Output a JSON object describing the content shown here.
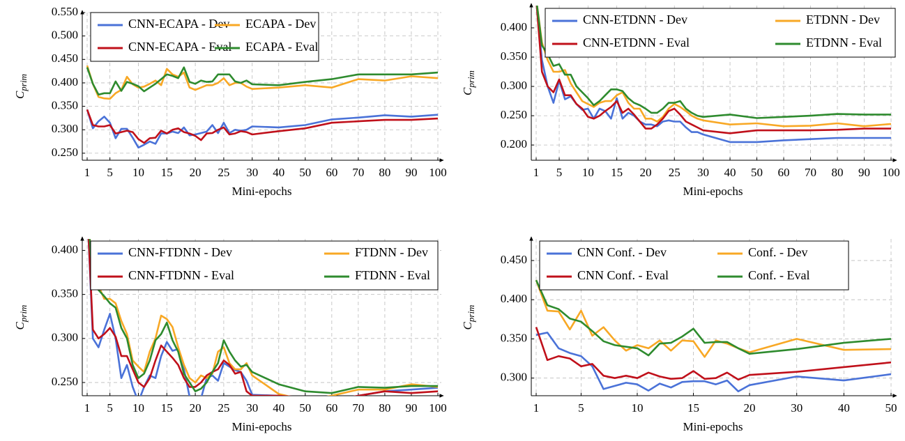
{
  "chart_data": [
    {
      "type": "line",
      "x_label": "Mini-epochs",
      "y_label": {
        "base": "C",
        "sub": "prim"
      },
      "categories": [
        "1",
        null,
        null,
        null,
        "5",
        null,
        null,
        null,
        null,
        "10",
        null,
        null,
        null,
        null,
        "15",
        null,
        null,
        null,
        null,
        "20",
        null,
        null,
        null,
        null,
        "25",
        null,
        null,
        null,
        null,
        "30",
        "40",
        "50",
        "60",
        "70",
        "80",
        "90",
        "100"
      ],
      "ylim": [
        0.235,
        0.55
      ],
      "yticks": [
        {
          "value": 0.25,
          "label": "0.250"
        },
        {
          "value": 0.3,
          "label": "0.300"
        },
        {
          "value": 0.35,
          "label": "0.350"
        },
        {
          "value": 0.4,
          "label": "0.400"
        },
        {
          "value": 0.45,
          "label": "0.450"
        },
        {
          "value": 0.5,
          "label": "0.500"
        },
        {
          "value": 0.55,
          "label": "0.550"
        }
      ],
      "grid": true,
      "series": [
        {
          "name": "CNN-ECAPA - Dev",
          "color": "#4a72d8",
          "values": [
            0.343,
            0.303,
            0.318,
            0.328,
            0.315,
            0.282,
            0.302,
            0.302,
            0.283,
            0.262,
            0.268,
            0.275,
            0.27,
            0.292,
            0.292,
            0.296,
            0.293,
            0.305,
            0.288,
            0.29,
            0.293,
            0.296,
            0.31,
            0.293,
            0.315,
            0.293,
            0.3,
            0.298,
            0.3,
            0.307,
            0.305,
            0.31,
            0.322,
            0.326,
            0.331,
            0.328,
            0.332
          ]
        },
        {
          "name": "ECAPA - Dev",
          "color": "#f8a825",
          "values": [
            0.437,
            0.398,
            0.37,
            0.367,
            0.366,
            0.378,
            0.385,
            0.413,
            0.397,
            0.39,
            0.392,
            0.398,
            0.405,
            0.395,
            0.43,
            0.418,
            0.413,
            0.422,
            0.39,
            0.385,
            0.39,
            0.395,
            0.395,
            0.4,
            0.41,
            0.395,
            0.4,
            0.4,
            0.392,
            0.387,
            0.39,
            0.395,
            0.39,
            0.408,
            0.405,
            0.414,
            0.41
          ]
        },
        {
          "name": "CNN-ECAPA - Eval",
          "color": "#c0101a",
          "values": [
            0.343,
            0.31,
            0.307,
            0.307,
            0.31,
            0.292,
            0.295,
            0.298,
            0.295,
            0.28,
            0.272,
            0.282,
            0.283,
            0.298,
            0.292,
            0.3,
            0.303,
            0.295,
            0.292,
            0.287,
            0.278,
            0.292,
            0.293,
            0.3,
            0.305,
            0.29,
            0.292,
            0.297,
            0.295,
            0.29,
            0.297,
            0.303,
            0.315,
            0.318,
            0.321,
            0.321,
            0.324
          ]
        },
        {
          "name": "ECAPA - Eval",
          "color": "#2e8b2e",
          "values": [
            0.433,
            0.398,
            0.375,
            0.378,
            0.378,
            0.403,
            0.383,
            0.402,
            0.398,
            0.393,
            0.382,
            0.39,
            0.398,
            0.408,
            0.418,
            0.415,
            0.41,
            0.433,
            0.402,
            0.398,
            0.405,
            0.402,
            0.403,
            0.418,
            0.418,
            0.418,
            0.403,
            0.4,
            0.405,
            0.397,
            0.395,
            0.402,
            0.408,
            0.418,
            0.418,
            0.418,
            0.422
          ]
        }
      ]
    },
    {
      "type": "line",
      "x_label": "Mini-epochs",
      "y_label": {
        "base": "C",
        "sub": "prim"
      },
      "categories": [
        "1",
        null,
        null,
        null,
        "5",
        null,
        null,
        null,
        null,
        "10",
        null,
        null,
        null,
        null,
        "15",
        null,
        null,
        null,
        null,
        "20",
        null,
        null,
        null,
        null,
        "25",
        null,
        null,
        null,
        null,
        "30",
        "40",
        "50",
        "60",
        "70",
        "80",
        "90",
        "100"
      ],
      "ylim": [
        0.174,
        0.438
      ],
      "yticks": [
        {
          "value": 0.2,
          "label": "0.200"
        },
        {
          "value": 0.25,
          "label": "0.250"
        },
        {
          "value": 0.3,
          "label": "0.300"
        },
        {
          "value": 0.35,
          "label": "0.350"
        },
        {
          "value": 0.4,
          "label": "0.400"
        }
      ],
      "grid": true,
      "series": [
        {
          "name": "CNN-ETDNN - Dev",
          "color": "#4a72d8",
          "values": [
            0.45,
            0.345,
            0.3,
            0.272,
            0.31,
            0.278,
            0.283,
            0.27,
            0.26,
            0.262,
            0.245,
            0.262,
            0.258,
            0.245,
            0.28,
            0.245,
            0.255,
            0.25,
            0.24,
            0.235,
            0.235,
            0.232,
            0.24,
            0.242,
            0.24,
            0.24,
            0.23,
            0.222,
            0.222,
            0.218,
            0.205,
            0.205,
            0.208,
            0.21,
            0.212,
            0.212,
            0.212
          ]
        },
        {
          "name": "ETDNN - Dev",
          "color": "#f8a825",
          "values": [
            0.45,
            0.375,
            0.345,
            0.325,
            0.325,
            0.328,
            0.305,
            0.29,
            0.275,
            0.27,
            0.265,
            0.272,
            0.275,
            0.275,
            0.285,
            0.29,
            0.272,
            0.262,
            0.262,
            0.245,
            0.245,
            0.24,
            0.248,
            0.262,
            0.27,
            0.265,
            0.258,
            0.25,
            0.245,
            0.242,
            0.235,
            0.237,
            0.232,
            0.233,
            0.237,
            0.232,
            0.236
          ]
        },
        {
          "name": "CNN-ETDNN - Eval",
          "color": "#c0101a",
          "values": [
            0.45,
            0.325,
            0.3,
            0.29,
            0.312,
            0.285,
            0.285,
            0.27,
            0.262,
            0.248,
            0.245,
            0.25,
            0.258,
            0.265,
            0.275,
            0.255,
            0.262,
            0.252,
            0.24,
            0.228,
            0.228,
            0.235,
            0.245,
            0.258,
            0.262,
            0.252,
            0.24,
            0.235,
            0.23,
            0.225,
            0.22,
            0.225,
            0.225,
            0.225,
            0.226,
            0.228,
            0.228
          ]
        },
        {
          "name": "ETDNN - Eval",
          "color": "#2e8b2e",
          "values": [
            0.45,
            0.37,
            0.355,
            0.335,
            0.338,
            0.32,
            0.32,
            0.3,
            0.29,
            0.28,
            0.268,
            0.275,
            0.285,
            0.295,
            0.295,
            0.292,
            0.28,
            0.272,
            0.268,
            0.262,
            0.255,
            0.255,
            0.262,
            0.272,
            0.272,
            0.275,
            0.262,
            0.255,
            0.25,
            0.248,
            0.252,
            0.246,
            0.248,
            0.25,
            0.253,
            0.252,
            0.252
          ]
        }
      ]
    },
    {
      "type": "line",
      "x_label": "Mini-epochs",
      "y_label": {
        "base": "C",
        "sub": "prim"
      },
      "categories": [
        "1",
        null,
        null,
        null,
        "5",
        null,
        null,
        null,
        null,
        "10",
        null,
        null,
        null,
        null,
        "15",
        null,
        null,
        null,
        null,
        "20",
        null,
        null,
        null,
        null,
        "25",
        null,
        null,
        null,
        null,
        "30",
        "40",
        "50",
        "60",
        "70",
        "80",
        "90",
        "100"
      ],
      "ylim": [
        0.235,
        0.413
      ],
      "yticks": [
        {
          "value": 0.25,
          "label": "0.250"
        },
        {
          "value": 0.3,
          "label": "0.300"
        },
        {
          "value": 0.35,
          "label": "0.350"
        },
        {
          "value": 0.4,
          "label": "0.400"
        }
      ],
      "grid": true,
      "series": [
        {
          "name": "CNN-FTDNN - Dev",
          "color": "#4a72d8",
          "values": [
            0.45,
            0.3,
            0.29,
            0.31,
            0.328,
            0.3,
            0.255,
            0.27,
            0.245,
            0.228,
            0.245,
            0.258,
            0.255,
            0.28,
            0.296,
            0.286,
            0.288,
            0.265,
            0.234,
            0.233,
            0.232,
            0.255,
            0.258,
            0.252,
            0.272,
            0.268,
            0.264,
            0.262,
            0.252,
            0.236,
            0.235,
            0.232,
            0.227,
            0.235,
            0.24,
            0.242,
            0.244
          ]
        },
        {
          "name": "FTDNN - Dev",
          "color": "#f8a825",
          "values": [
            0.45,
            0.37,
            0.36,
            0.345,
            0.345,
            0.34,
            0.32,
            0.305,
            0.275,
            0.268,
            0.262,
            0.285,
            0.3,
            0.326,
            0.322,
            0.313,
            0.29,
            0.27,
            0.255,
            0.25,
            0.258,
            0.255,
            0.26,
            0.285,
            0.29,
            0.272,
            0.265,
            0.265,
            0.272,
            0.258,
            0.237,
            0.23,
            0.235,
            0.242,
            0.242,
            0.248,
            0.245
          ]
        },
        {
          "name": "CNN-FTDNN - Eval",
          "color": "#c0101a",
          "values": [
            0.45,
            0.31,
            0.3,
            0.305,
            0.312,
            0.302,
            0.28,
            0.28,
            0.265,
            0.25,
            0.245,
            0.255,
            0.275,
            0.292,
            0.285,
            0.278,
            0.27,
            0.255,
            0.245,
            0.245,
            0.25,
            0.258,
            0.262,
            0.265,
            0.275,
            0.27,
            0.26,
            0.262,
            0.24,
            0.235,
            0.235,
            0.233,
            0.23,
            0.235,
            0.24,
            0.238,
            0.24
          ]
        },
        {
          "name": "FTDNN - Eval",
          "color": "#2e8b2e",
          "values": [
            0.45,
            0.365,
            0.355,
            0.348,
            0.34,
            0.335,
            0.312,
            0.3,
            0.27,
            0.255,
            0.26,
            0.275,
            0.298,
            0.305,
            0.318,
            0.298,
            0.285,
            0.26,
            0.25,
            0.24,
            0.243,
            0.25,
            0.262,
            0.272,
            0.298,
            0.285,
            0.275,
            0.268,
            0.27,
            0.262,
            0.248,
            0.24,
            0.238,
            0.245,
            0.244,
            0.246,
            0.246
          ]
        }
      ]
    },
    {
      "type": "line",
      "x_label": "Mini-epochs",
      "y_label": {
        "base": "C",
        "sub": "prim"
      },
      "categories": [
        "1",
        null,
        null,
        null,
        "5",
        null,
        null,
        null,
        null,
        "10",
        null,
        null,
        null,
        null,
        "15",
        null,
        null,
        null,
        null,
        "20",
        "30",
        "40",
        "50"
      ],
      "ylim": [
        0.2775,
        0.4775
      ],
      "yticks": [
        {
          "value": 0.3,
          "label": "0.300"
        },
        {
          "value": 0.35,
          "label": "0.350"
        },
        {
          "value": 0.4,
          "label": "0.400"
        },
        {
          "value": 0.45,
          "label": "0.450"
        }
      ],
      "grid": true,
      "series": [
        {
          "name": "CNN Conf. - Dev",
          "color": "#4a72d8",
          "values": [
            0.355,
            0.358,
            0.338,
            0.332,
            0.328,
            0.315,
            0.286,
            0.29,
            0.294,
            0.292,
            0.284,
            0.293,
            0.288,
            0.295,
            0.296,
            0.296,
            0.292,
            0.297,
            0.283,
            0.291,
            0.302,
            0.297,
            0.305
          ]
        },
        {
          "name": "Conf. - Dev",
          "color": "#f8a825",
          "values": [
            0.425,
            0.386,
            0.385,
            0.362,
            0.386,
            0.354,
            0.365,
            0.348,
            0.335,
            0.342,
            0.338,
            0.348,
            0.335,
            0.348,
            0.347,
            0.327,
            0.348,
            0.344,
            0.338,
            0.333,
            0.35,
            0.336,
            0.337
          ]
        },
        {
          "name": "CNN Conf. - Eval",
          "color": "#c0101a",
          "values": [
            0.365,
            0.323,
            0.328,
            0.325,
            0.315,
            0.318,
            0.303,
            0.3,
            0.303,
            0.3,
            0.307,
            0.302,
            0.299,
            0.3,
            0.309,
            0.299,
            0.3,
            0.307,
            0.298,
            0.304,
            0.308,
            0.314,
            0.32
          ]
        },
        {
          "name": "Conf. - Eval",
          "color": "#2e8b2e",
          "values": [
            0.425,
            0.393,
            0.388,
            0.376,
            0.372,
            0.36,
            0.347,
            0.342,
            0.34,
            0.338,
            0.329,
            0.344,
            0.345,
            0.353,
            0.363,
            0.345,
            0.346,
            0.346,
            0.338,
            0.331,
            0.337,
            0.345,
            0.35
          ]
        }
      ]
    }
  ]
}
